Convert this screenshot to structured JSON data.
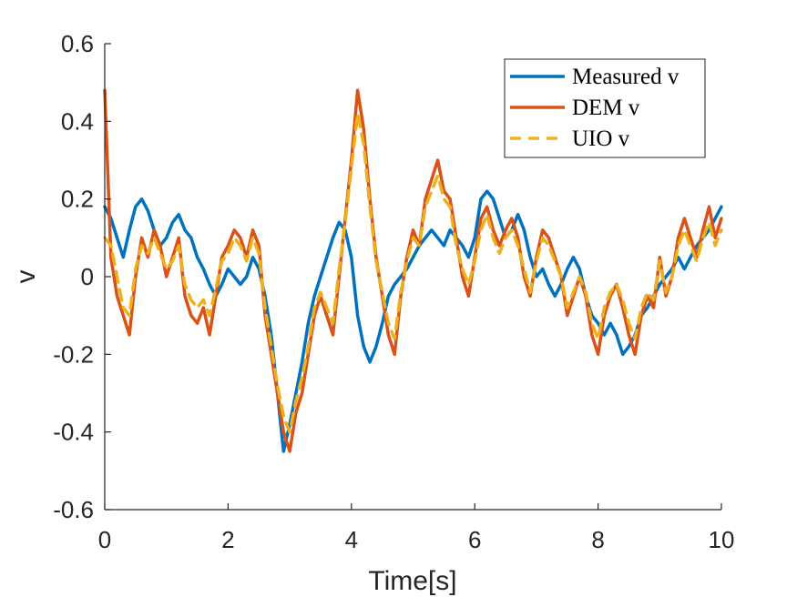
{
  "chart_data": {
    "type": "line",
    "title": "",
    "xlabel": "Time[s]",
    "ylabel": "v",
    "xlim": [
      0,
      10
    ],
    "ylim": [
      -0.6,
      0.6
    ],
    "xticks": [
      0,
      2,
      4,
      6,
      8,
      10
    ],
    "xtick_labels": [
      "0",
      "2",
      "4",
      "6",
      "8",
      "10"
    ],
    "yticks": [
      -0.6,
      -0.4,
      -0.2,
      0,
      0.2,
      0.4,
      0.6
    ],
    "ytick_labels": [
      "-0.6",
      "-0.4",
      "-0.2",
      "0",
      "0.2",
      "0.4",
      "0.6"
    ],
    "grid": false,
    "legend_position": "top-right",
    "series": [
      {
        "name": "Measured v",
        "color": "#0072BD",
        "style": "solid",
        "x": [
          0,
          0.1,
          0.2,
          0.3,
          0.4,
          0.5,
          0.6,
          0.7,
          0.8,
          0.9,
          1.0,
          1.1,
          1.2,
          1.3,
          1.4,
          1.5,
          1.6,
          1.7,
          1.8,
          1.9,
          2.0,
          2.1,
          2.2,
          2.3,
          2.4,
          2.5,
          2.6,
          2.7,
          2.8,
          2.9,
          3.0,
          3.1,
          3.2,
          3.3,
          3.4,
          3.5,
          3.6,
          3.7,
          3.8,
          3.9,
          4.0,
          4.1,
          4.2,
          4.3,
          4.4,
          4.5,
          4.6,
          4.7,
          4.8,
          4.9,
          5.0,
          5.1,
          5.2,
          5.3,
          5.4,
          5.5,
          5.6,
          5.7,
          5.8,
          5.9,
          6.0,
          6.1,
          6.2,
          6.3,
          6.4,
          6.5,
          6.6,
          6.7,
          6.8,
          6.9,
          7.0,
          7.1,
          7.2,
          7.3,
          7.4,
          7.5,
          7.6,
          7.7,
          7.8,
          7.9,
          8.0,
          8.1,
          8.2,
          8.3,
          8.4,
          8.5,
          8.6,
          8.7,
          8.8,
          8.9,
          9.0,
          9.1,
          9.2,
          9.3,
          9.4,
          9.5,
          9.6,
          9.7,
          9.8,
          9.9,
          10.0
        ],
        "y": [
          0.18,
          0.15,
          0.1,
          0.05,
          0.12,
          0.18,
          0.2,
          0.17,
          0.12,
          0.08,
          0.1,
          0.14,
          0.16,
          0.12,
          0.1,
          0.05,
          0.02,
          -0.02,
          -0.05,
          -0.02,
          0.02,
          0.0,
          -0.02,
          0.0,
          0.05,
          0.02,
          -0.05,
          -0.15,
          -0.3,
          -0.45,
          -0.38,
          -0.3,
          -0.22,
          -0.12,
          -0.05,
          0.0,
          0.05,
          0.1,
          0.14,
          0.12,
          0.05,
          -0.1,
          -0.18,
          -0.22,
          -0.18,
          -0.12,
          -0.05,
          -0.02,
          0.0,
          0.02,
          0.05,
          0.08,
          0.1,
          0.12,
          0.1,
          0.08,
          0.12,
          0.1,
          0.08,
          0.05,
          0.1,
          0.2,
          0.22,
          0.2,
          0.15,
          0.1,
          0.12,
          0.16,
          0.12,
          0.05,
          0.0,
          0.02,
          -0.02,
          -0.05,
          -0.02,
          0.02,
          0.05,
          0.02,
          -0.05,
          -0.1,
          -0.12,
          -0.15,
          -0.12,
          -0.15,
          -0.2,
          -0.18,
          -0.15,
          -0.1,
          -0.08,
          -0.05,
          -0.02,
          0.0,
          0.02,
          0.05,
          0.02,
          0.05,
          0.08,
          0.1,
          0.12,
          0.15,
          0.18
        ]
      },
      {
        "name": "DEM v",
        "color": "#D95319",
        "style": "solid",
        "x": [
          0,
          0.1,
          0.2,
          0.3,
          0.4,
          0.5,
          0.6,
          0.7,
          0.8,
          0.9,
          1.0,
          1.1,
          1.2,
          1.3,
          1.4,
          1.5,
          1.6,
          1.7,
          1.8,
          1.9,
          2.0,
          2.1,
          2.2,
          2.3,
          2.4,
          2.5,
          2.6,
          2.7,
          2.8,
          2.9,
          3.0,
          3.1,
          3.2,
          3.3,
          3.4,
          3.5,
          3.6,
          3.7,
          3.8,
          3.9,
          4.0,
          4.1,
          4.2,
          4.3,
          4.4,
          4.5,
          4.6,
          4.7,
          4.8,
          4.9,
          5.0,
          5.1,
          5.2,
          5.3,
          5.4,
          5.5,
          5.6,
          5.7,
          5.8,
          5.9,
          6.0,
          6.1,
          6.2,
          6.3,
          6.4,
          6.5,
          6.6,
          6.7,
          6.8,
          6.9,
          7.0,
          7.1,
          7.2,
          7.3,
          7.4,
          7.5,
          7.6,
          7.7,
          7.8,
          7.9,
          8.0,
          8.1,
          8.2,
          8.3,
          8.4,
          8.5,
          8.6,
          8.7,
          8.8,
          8.9,
          9.0,
          9.1,
          9.2,
          9.3,
          9.4,
          9.5,
          9.6,
          9.7,
          9.8,
          9.9,
          10.0
        ],
        "y": [
          0.48,
          0.05,
          -0.05,
          -0.1,
          -0.15,
          0.0,
          0.1,
          0.05,
          0.12,
          0.08,
          0.0,
          0.05,
          0.1,
          -0.05,
          -0.1,
          -0.12,
          -0.08,
          -0.15,
          -0.05,
          0.05,
          0.08,
          0.12,
          0.1,
          0.05,
          0.12,
          0.08,
          -0.1,
          -0.2,
          -0.3,
          -0.4,
          -0.45,
          -0.35,
          -0.3,
          -0.2,
          -0.1,
          -0.05,
          -0.1,
          -0.15,
          0.0,
          0.15,
          0.3,
          0.48,
          0.38,
          0.2,
          0.05,
          -0.05,
          -0.15,
          -0.2,
          -0.05,
          0.05,
          0.12,
          0.08,
          0.2,
          0.25,
          0.3,
          0.22,
          0.2,
          0.1,
          0.0,
          -0.05,
          0.05,
          0.15,
          0.18,
          0.12,
          0.08,
          0.12,
          0.15,
          0.1,
          0.0,
          -0.05,
          0.05,
          0.12,
          0.1,
          0.05,
          0.0,
          -0.1,
          -0.05,
          0.0,
          -0.05,
          -0.15,
          -0.2,
          -0.1,
          -0.05,
          -0.02,
          -0.08,
          -0.15,
          -0.2,
          -0.1,
          -0.05,
          -0.08,
          0.05,
          -0.05,
          0.0,
          0.1,
          0.15,
          0.1,
          0.05,
          0.12,
          0.18,
          0.1,
          0.15
        ]
      },
      {
        "name": "UIO v",
        "color": "#EDB120",
        "style": "dashed",
        "x": [
          0,
          0.1,
          0.2,
          0.3,
          0.4,
          0.5,
          0.6,
          0.7,
          0.8,
          0.9,
          1.0,
          1.1,
          1.2,
          1.3,
          1.4,
          1.5,
          1.6,
          1.7,
          1.8,
          1.9,
          2.0,
          2.1,
          2.2,
          2.3,
          2.4,
          2.5,
          2.6,
          2.7,
          2.8,
          2.9,
          3.0,
          3.1,
          3.2,
          3.3,
          3.4,
          3.5,
          3.6,
          3.7,
          3.8,
          3.9,
          4.0,
          4.1,
          4.2,
          4.3,
          4.4,
          4.5,
          4.6,
          4.7,
          4.8,
          4.9,
          5.0,
          5.1,
          5.2,
          5.3,
          5.4,
          5.5,
          5.6,
          5.7,
          5.8,
          5.9,
          6.0,
          6.1,
          6.2,
          6.3,
          6.4,
          6.5,
          6.6,
          6.7,
          6.8,
          6.9,
          7.0,
          7.1,
          7.2,
          7.3,
          7.4,
          7.5,
          7.6,
          7.7,
          7.8,
          7.9,
          8.0,
          8.1,
          8.2,
          8.3,
          8.4,
          8.5,
          8.6,
          8.7,
          8.8,
          8.9,
          9.0,
          9.1,
          9.2,
          9.3,
          9.4,
          9.5,
          9.6,
          9.7,
          9.8,
          9.9,
          10.0
        ],
        "y": [
          0.1,
          0.08,
          0.0,
          -0.08,
          -0.1,
          0.02,
          0.08,
          0.06,
          0.1,
          0.06,
          0.02,
          0.04,
          0.08,
          -0.02,
          -0.06,
          -0.08,
          -0.06,
          -0.1,
          -0.03,
          0.04,
          0.06,
          0.1,
          0.08,
          0.04,
          0.1,
          0.06,
          -0.08,
          -0.18,
          -0.28,
          -0.36,
          -0.4,
          -0.32,
          -0.26,
          -0.18,
          -0.08,
          -0.04,
          -0.08,
          -0.12,
          0.02,
          0.14,
          0.28,
          0.42,
          0.34,
          0.18,
          0.04,
          -0.04,
          -0.12,
          -0.16,
          -0.04,
          0.04,
          0.1,
          0.08,
          0.18,
          0.22,
          0.26,
          0.2,
          0.18,
          0.08,
          0.02,
          -0.02,
          0.04,
          0.12,
          0.16,
          0.1,
          0.06,
          0.1,
          0.12,
          0.08,
          0.02,
          -0.04,
          0.04,
          0.1,
          0.08,
          0.04,
          0.0,
          -0.08,
          -0.04,
          0.0,
          -0.04,
          -0.12,
          -0.16,
          -0.08,
          -0.04,
          -0.02,
          -0.06,
          -0.12,
          -0.16,
          -0.08,
          -0.04,
          -0.06,
          0.04,
          -0.04,
          0.0,
          0.08,
          0.12,
          0.08,
          0.04,
          0.1,
          0.14,
          0.08,
          0.12
        ]
      }
    ]
  }
}
